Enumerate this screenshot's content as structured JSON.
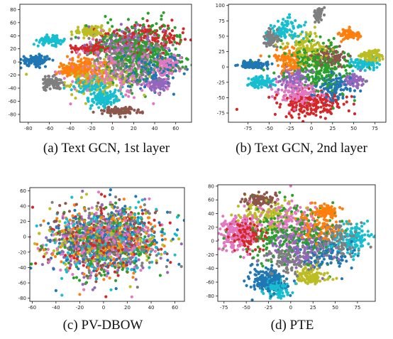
{
  "chart_data": [
    {
      "type": "scatter",
      "caption": "(a) Text GCN, 1st layer",
      "xlim": [
        -88,
        75
      ],
      "ylim": [
        -92,
        88
      ],
      "xticks": [
        -80,
        -60,
        -40,
        -20,
        0,
        20,
        40,
        60
      ],
      "yticks": [
        -80,
        -60,
        -40,
        -20,
        0,
        20,
        40,
        60,
        80
      ],
      "clusters": [
        {
          "color": "#1f77b4",
          "cx": -73,
          "cy": 2,
          "sx": 7,
          "sy": 4,
          "n": 120
        },
        {
          "color": "#17becf",
          "cx": -59,
          "cy": 33,
          "sx": 6,
          "sy": 3,
          "n": 90
        },
        {
          "color": "#7f7f7f",
          "cx": -57,
          "cy": -33,
          "sx": 5,
          "sy": 5,
          "n": 80
        },
        {
          "color": "#bcbd22",
          "cx": -20,
          "cy": 47,
          "sx": 8,
          "sy": 4,
          "n": 100
        },
        {
          "color": "#17becf",
          "cx": -8,
          "cy": -55,
          "sx": 7,
          "sy": 7,
          "n": 120
        },
        {
          "color": "#8c564b",
          "cx": 7,
          "cy": -75,
          "sx": 10,
          "sy": 3,
          "n": 110
        },
        {
          "color": "#9467bd",
          "cx": 43,
          "cy": -33,
          "sx": 6,
          "sy": 5,
          "n": 90
        },
        {
          "color": "#e377c2",
          "cx": 52,
          "cy": -5,
          "sx": 6,
          "sy": 8,
          "n": 80
        },
        {
          "color": "#d62728",
          "cx": -20,
          "cy": 20,
          "sx": 8,
          "sy": 3,
          "n": 90
        },
        {
          "color": "#ff7f0e",
          "cx": -38,
          "cy": -12,
          "sx": 6,
          "sy": 4,
          "n": 80
        },
        {
          "color": "#2ca02c",
          "cx": 25,
          "cy": 18,
          "sx": 22,
          "sy": 22,
          "n": 360
        },
        {
          "color": "#7f7f7f",
          "cx": 20,
          "cy": 5,
          "sx": 22,
          "sy": 18,
          "n": 220
        },
        {
          "color": "#e377c2",
          "cx": 5,
          "cy": -10,
          "sx": 24,
          "sy": 20,
          "n": 240
        },
        {
          "color": "#bcbd22",
          "cx": -15,
          "cy": -25,
          "sx": 18,
          "sy": 12,
          "n": 160
        },
        {
          "color": "#ff7f0e",
          "cx": -25,
          "cy": -10,
          "sx": 12,
          "sy": 9,
          "n": 130
        },
        {
          "color": "#d62728",
          "cx": 30,
          "cy": 35,
          "sx": 20,
          "sy": 12,
          "n": 160
        },
        {
          "color": "#1f77b4",
          "cx": 35,
          "cy": -10,
          "sx": 15,
          "sy": 15,
          "n": 130
        },
        {
          "color": "#9467bd",
          "cx": 10,
          "cy": 30,
          "sx": 16,
          "sy": 12,
          "n": 120
        },
        {
          "color": "#17becf",
          "cx": -20,
          "cy": -35,
          "sx": 10,
          "sy": 8,
          "n": 90
        }
      ]
    },
    {
      "type": "scatter",
      "caption": "(b) Text GCN, 2nd layer",
      "xlim": [
        -98,
        88
      ],
      "ylim": [
        -90,
        102
      ],
      "xticks": [
        -75,
        -50,
        -25,
        0,
        25,
        50,
        75
      ],
      "yticks": [
        -75,
        -50,
        -25,
        0,
        25,
        50,
        75,
        100
      ],
      "clusters": [
        {
          "color": "#1f77b4",
          "cx": -68,
          "cy": 3,
          "sx": 9,
          "sy": 3,
          "n": 110
        },
        {
          "color": "#17becf",
          "cx": -58,
          "cy": -25,
          "sx": 7,
          "sy": 5,
          "n": 90
        },
        {
          "color": "#7f7f7f",
          "cx": -47,
          "cy": 47,
          "sx": 4,
          "sy": 7,
          "n": 80
        },
        {
          "color": "#ff7f0e",
          "cx": 45,
          "cy": 52,
          "sx": 6,
          "sy": 4,
          "n": 80
        },
        {
          "color": "#bcbd22",
          "cx": 70,
          "cy": 17,
          "sx": 7,
          "sy": 5,
          "n": 80
        },
        {
          "color": "#7f7f7f",
          "cx": 8,
          "cy": 85,
          "sx": 3,
          "sy": 6,
          "n": 50
        },
        {
          "color": "#9467bd",
          "cx": 50,
          "cy": -22,
          "sx": 6,
          "sy": 5,
          "n": 70
        },
        {
          "color": "#17becf",
          "cx": 62,
          "cy": 5,
          "sx": 8,
          "sy": 4,
          "n": 70
        },
        {
          "color": "#d62728",
          "cx": 0,
          "cy": -60,
          "sx": 20,
          "sy": 10,
          "n": 200
        },
        {
          "color": "#e377c2",
          "cx": -15,
          "cy": -45,
          "sx": 14,
          "sy": 10,
          "n": 140
        },
        {
          "color": "#2ca02c",
          "cx": 10,
          "cy": 0,
          "sx": 20,
          "sy": 20,
          "n": 260
        },
        {
          "color": "#bcbd22",
          "cx": -5,
          "cy": 30,
          "sx": 12,
          "sy": 14,
          "n": 130
        },
        {
          "color": "#8c564b",
          "cx": 20,
          "cy": 15,
          "sx": 12,
          "sy": 10,
          "n": 100
        },
        {
          "color": "#1f77b4",
          "cx": 25,
          "cy": -30,
          "sx": 12,
          "sy": 12,
          "n": 120
        },
        {
          "color": "#ff7f0e",
          "cx": -25,
          "cy": 10,
          "sx": 10,
          "sy": 10,
          "n": 100
        },
        {
          "color": "#9467bd",
          "cx": -20,
          "cy": -20,
          "sx": 10,
          "sy": 10,
          "n": 90
        },
        {
          "color": "#17becf",
          "cx": -30,
          "cy": 60,
          "sx": 10,
          "sy": 10,
          "n": 90
        }
      ]
    },
    {
      "type": "scatter",
      "caption": "(c) PV-DBOW",
      "xlim": [
        -62,
        68
      ],
      "ylim": [
        -84,
        64
      ],
      "xticks": [
        -60,
        -40,
        -20,
        0,
        20,
        40,
        60
      ],
      "yticks": [
        -80,
        -60,
        -40,
        -20,
        0,
        20,
        40,
        60
      ],
      "clusters": [
        {
          "color": "#1f77b4",
          "cx": 0,
          "cy": -5,
          "sx": 24,
          "sy": 22,
          "n": 200
        },
        {
          "color": "#ff7f0e",
          "cx": 0,
          "cy": -5,
          "sx": 24,
          "sy": 22,
          "n": 180
        },
        {
          "color": "#2ca02c",
          "cx": 0,
          "cy": -5,
          "sx": 24,
          "sy": 22,
          "n": 180
        },
        {
          "color": "#d62728",
          "cx": 0,
          "cy": -5,
          "sx": 24,
          "sy": 22,
          "n": 180
        },
        {
          "color": "#9467bd",
          "cx": 0,
          "cy": -5,
          "sx": 24,
          "sy": 22,
          "n": 180
        },
        {
          "color": "#8c564b",
          "cx": 0,
          "cy": -5,
          "sx": 24,
          "sy": 22,
          "n": 150
        },
        {
          "color": "#e377c2",
          "cx": 0,
          "cy": -5,
          "sx": 24,
          "sy": 22,
          "n": 200
        },
        {
          "color": "#7f7f7f",
          "cx": 0,
          "cy": -5,
          "sx": 24,
          "sy": 22,
          "n": 160
        },
        {
          "color": "#bcbd22",
          "cx": 0,
          "cy": -5,
          "sx": 24,
          "sy": 22,
          "n": 180
        },
        {
          "color": "#17becf",
          "cx": 0,
          "cy": -5,
          "sx": 24,
          "sy": 22,
          "n": 180
        }
      ],
      "points": [
        {
          "x": -40,
          "y": -70,
          "color": "#1f77b4"
        },
        {
          "x": -20,
          "y": -75,
          "color": "#ff7f0e"
        },
        {
          "x": 2,
          "y": -78,
          "color": "#d62728"
        },
        {
          "x": -35,
          "y": -76,
          "color": "#17becf"
        }
      ]
    },
    {
      "type": "scatter",
      "caption": "(d) PTE",
      "xlim": [
        -82,
        95
      ],
      "ylim": [
        -88,
        82
      ],
      "xticks": [
        -75,
        -50,
        -25,
        0,
        25,
        50,
        75
      ],
      "yticks": [
        -80,
        -60,
        -40,
        -20,
        0,
        20,
        40,
        60,
        80
      ],
      "clusters": [
        {
          "color": "#1f77b4",
          "cx": -25,
          "cy": -58,
          "sx": 10,
          "sy": 9,
          "n": 200
        },
        {
          "color": "#17becf",
          "cx": -15,
          "cy": -68,
          "sx": 7,
          "sy": 7,
          "n": 100
        },
        {
          "color": "#bcbd22",
          "cx": 23,
          "cy": -52,
          "sx": 8,
          "sy": 6,
          "n": 120
        },
        {
          "color": "#ff7f0e",
          "cx": 40,
          "cy": 43,
          "sx": 6,
          "sy": 4,
          "n": 80
        },
        {
          "color": "#8c564b",
          "cx": -35,
          "cy": 60,
          "sx": 10,
          "sy": 5,
          "n": 100
        },
        {
          "color": "#e377c2",
          "cx": -60,
          "cy": 10,
          "sx": 10,
          "sy": 14,
          "n": 160
        },
        {
          "color": "#d62728",
          "cx": -50,
          "cy": 10,
          "sx": 10,
          "sy": 12,
          "n": 140
        },
        {
          "color": "#17becf",
          "cx": 70,
          "cy": 5,
          "sx": 12,
          "sy": 10,
          "n": 140
        },
        {
          "color": "#7f7f7f",
          "cx": 50,
          "cy": 0,
          "sx": 12,
          "sy": 12,
          "n": 120
        },
        {
          "color": "#2ca02c",
          "cx": 0,
          "cy": 10,
          "sx": 28,
          "sy": 22,
          "n": 260
        },
        {
          "color": "#9467bd",
          "cx": 10,
          "cy": -10,
          "sx": 20,
          "sy": 15,
          "n": 160
        },
        {
          "color": "#e377c2",
          "cx": -10,
          "cy": 30,
          "sx": 20,
          "sy": 15,
          "n": 140
        },
        {
          "color": "#7f7f7f",
          "cx": 0,
          "cy": -30,
          "sx": 15,
          "sy": 10,
          "n": 100
        },
        {
          "color": "#ff7f0e",
          "cx": 30,
          "cy": 20,
          "sx": 15,
          "sy": 12,
          "n": 100
        },
        {
          "color": "#bcbd22",
          "cx": -30,
          "cy": 40,
          "sx": 15,
          "sy": 10,
          "n": 100
        },
        {
          "color": "#1f77b4",
          "cx": 35,
          "cy": -20,
          "sx": 15,
          "sy": 12,
          "n": 100
        }
      ]
    }
  ]
}
